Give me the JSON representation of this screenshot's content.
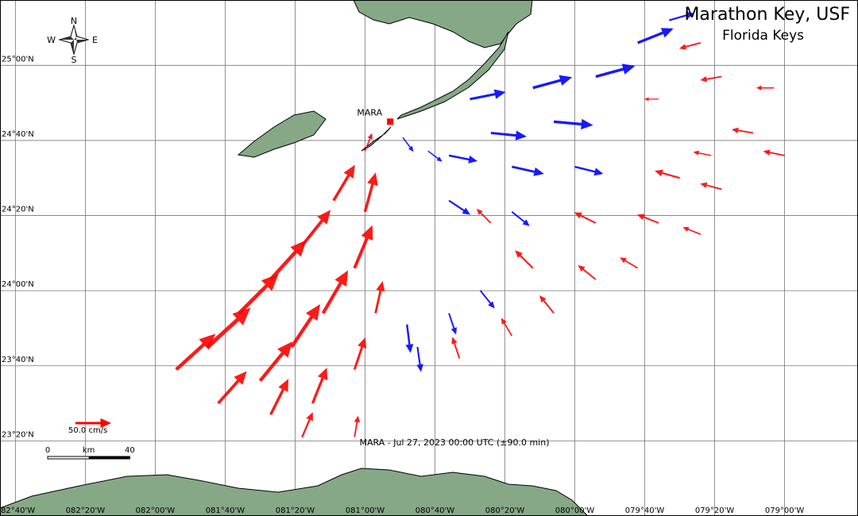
{
  "map": {
    "title": "Marathon Key, USF",
    "subtitle": "Florida Keys",
    "xlim": [
      -82.74,
      -78.65
    ],
    "ylim": [
      23.0,
      25.29
    ],
    "lon_ticks": [
      {
        "value": -82.6667,
        "label": "082°40'W"
      },
      {
        "value": -82.3333,
        "label": "082°20'W"
      },
      {
        "value": -82.0,
        "label": "082°00'W"
      },
      {
        "value": -81.6667,
        "label": "081°40'W"
      },
      {
        "value": -81.3333,
        "label": "081°20'W"
      },
      {
        "value": -81.0,
        "label": "081°00'W"
      },
      {
        "value": -80.6667,
        "label": "080°40'W"
      },
      {
        "value": -80.3333,
        "label": "080°20'W"
      },
      {
        "value": -80.0,
        "label": "080°00'W"
      },
      {
        "value": -79.6667,
        "label": "079°40'W"
      },
      {
        "value": -79.3333,
        "label": "079°20'W"
      },
      {
        "value": -79.0,
        "label": "079°00'W"
      }
    ],
    "lat_ticks": [
      {
        "value": 25.0,
        "label": "25°00'N"
      },
      {
        "value": 24.6667,
        "label": "24°40'N"
      },
      {
        "value": 24.3333,
        "label": "24°20'N"
      },
      {
        "value": 24.0,
        "label": "24°00'N"
      },
      {
        "value": 23.6667,
        "label": "23°40'N"
      },
      {
        "value": 23.3333,
        "label": "23°20'N"
      }
    ],
    "compass": {
      "n": "N",
      "e": "E",
      "s": "S",
      "w": "W"
    },
    "station": {
      "name": "MARA",
      "lon": -80.88,
      "lat": 24.75
    },
    "caption": "MARA - Jul 27, 2023 00:00 UTC (±90.0 min)",
    "scale_arrow": {
      "speed": 50,
      "label": "50.0 cm/s"
    },
    "scalebar": {
      "start": 0,
      "unit": "km",
      "end": 40
    },
    "toward_color": "#ff0000",
    "away_color": "#0000ff",
    "vectors": {
      "lon": [
        -81.9,
        -81.75,
        -81.6,
        -81.45,
        -81.3,
        -81.15,
        -81.7,
        -81.5,
        -81.35,
        -81.2,
        -81.05,
        -81.0,
        -81.45,
        -81.25,
        -81.05,
        -80.95,
        -81.3,
        -81.05,
        -80.8,
        -80.75,
        -80.6,
        -80.45,
        -80.55,
        -80.3,
        -80.1,
        -80.2,
        -79.9,
        -79.7,
        -79.9,
        -79.6,
        -79.4,
        -80.4,
        -79.3,
        -79.5,
        -80.6,
        -80.3,
        -80.0,
        -80.4,
        -80.1,
        -80.5,
        -80.2,
        -79.9,
        -79.7,
        -79.55,
        -80.6,
        -80.3,
        -79.3,
        -79.05,
        -79.15,
        -79.0,
        -79.35,
        -79.4,
        -79.6,
        -80.82,
        -80.7,
        -81.0
      ],
      "lat": [
        23.65,
        23.75,
        23.9,
        24.05,
        24.2,
        24.4,
        23.5,
        23.6,
        23.75,
        23.9,
        24.1,
        24.35,
        23.45,
        23.5,
        23.65,
        23.9,
        23.35,
        23.35,
        23.85,
        23.75,
        23.9,
        24.0,
        23.7,
        23.8,
        23.9,
        24.1,
        24.05,
        24.1,
        24.3,
        24.3,
        24.25,
        24.3,
        24.45,
        24.5,
        24.6,
        24.55,
        24.55,
        24.7,
        24.75,
        24.85,
        24.9,
        24.95,
        25.1,
        25.2,
        24.4,
        24.35,
        24.95,
        24.9,
        24.7,
        24.6,
        24.6,
        25.1,
        24.85,
        24.68,
        24.62,
        24.62
      ],
      "u": [
        55,
        60,
        55,
        50,
        40,
        30,
        40,
        45,
        40,
        35,
        25,
        15,
        25,
        20,
        15,
        10,
        15,
        5,
        5,
        5,
        10,
        20,
        -10,
        -15,
        -20,
        -25,
        -25,
        -25,
        -30,
        -30,
        -25,
        -20,
        -30,
        -35,
        40,
        45,
        40,
        50,
        55,
        50,
        55,
        55,
        50,
        35,
        30,
        25,
        -30,
        -25,
        -30,
        -30,
        -25,
        -30,
        -20,
        15,
        20,
        10
      ],
      "v": [
        50,
        55,
        55,
        55,
        50,
        50,
        45,
        55,
        60,
        60,
        60,
        55,
        50,
        50,
        45,
        45,
        35,
        30,
        -40,
        -35,
        -30,
        -25,
        30,
        25,
        25,
        25,
        20,
        15,
        15,
        12,
        10,
        20,
        8,
        10,
        -8,
        -10,
        -10,
        -5,
        -5,
        10,
        15,
        15,
        20,
        10,
        -20,
        -20,
        -5,
        0,
        5,
        6,
        5,
        -8,
        0,
        -20,
        -15,
        25
      ]
    }
  }
}
